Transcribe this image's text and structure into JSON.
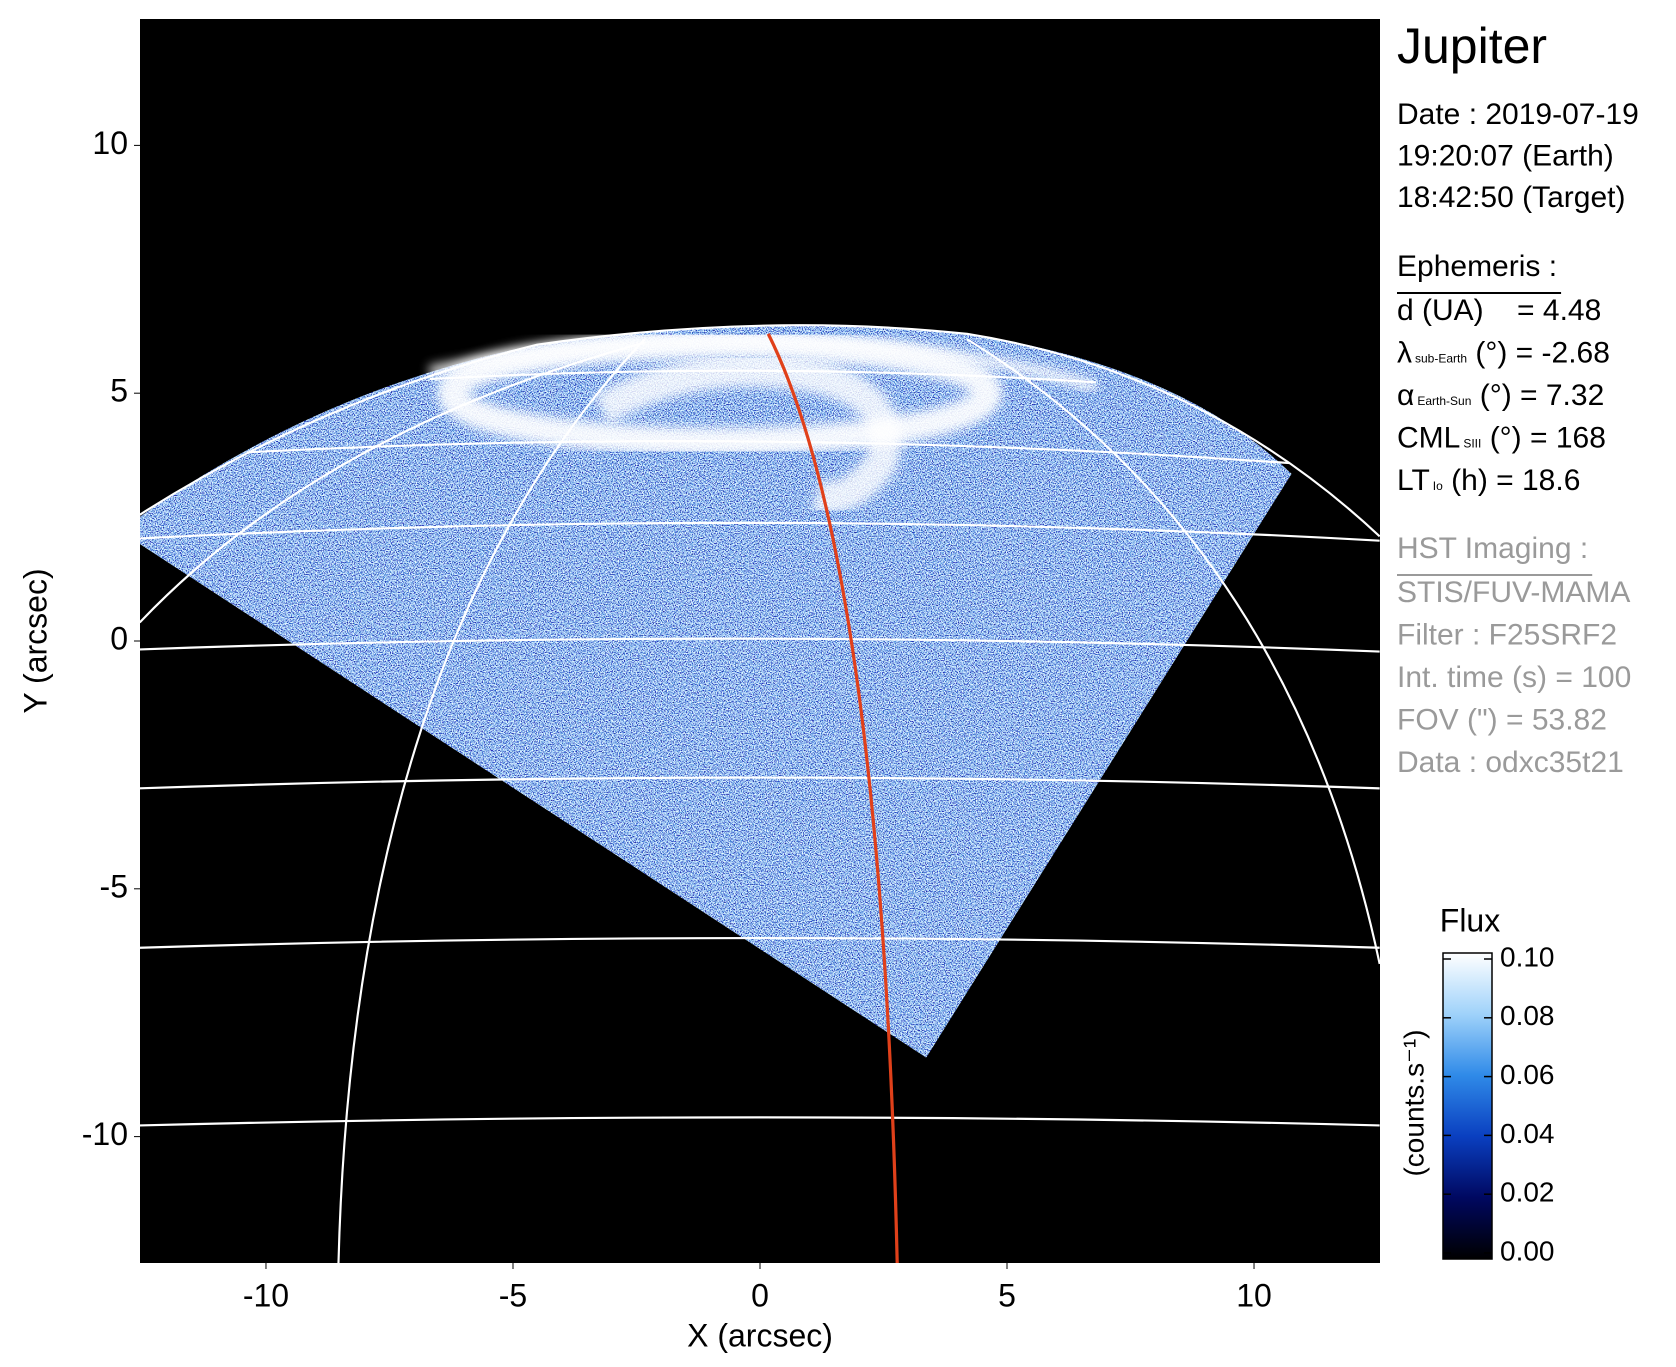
{
  "chart_data": {
    "type": "image",
    "xlabel": "X (arcsec)",
    "ylabel": "Y (arcsec)",
    "xlim": [
      -12.55,
      12.55
    ],
    "ylim": [
      -12.55,
      12.55
    ],
    "xticks": [
      -10,
      -5,
      0,
      5,
      10
    ],
    "yticks": [
      -10,
      -5,
      0,
      5,
      10
    ],
    "colorbar": {
      "title": "Flux",
      "label": "(counts.s⁻¹)",
      "clim": [
        0,
        0.1
      ],
      "ticks": [
        {
          "value": 0,
          "label": "0.00"
        },
        0.02,
        0.04,
        0.06,
        0.08,
        {
          "value": 0.1,
          "label": "0.10"
        }
      ],
      "colormap": [
        "#000000",
        "#000860",
        "#0a3fc0",
        "#2f8ae8",
        "#9fd2fa",
        "#ffffff"
      ]
    },
    "info": {
      "title": "Jupiter",
      "observation": [
        "Date : 2019-07-19",
        "19:20:07 (Earth)",
        "18:42:50 (Target)"
      ],
      "ephemeris_heading": "Ephemeris :",
      "ephemeris": [
        {
          "main": "d (UA)",
          "rest": "    = 4.48"
        },
        {
          "main": "λ",
          "sub": "sub-Earth",
          "rest": " (°) = -2.68"
        },
        {
          "main": "α",
          "sub": "Earth-Sun",
          "rest": " (°) = 7.32"
        },
        {
          "main": "CML",
          "sub": "SIII",
          "rest": " (°) = 168"
        },
        {
          "main": "LT",
          "sub": "Io",
          "rest": " (h) = 18.6"
        }
      ],
      "imaging_heading": "HST Imaging :",
      "imaging": [
        "STIS/FUV-MAMA",
        "Filter : F25SRF2",
        "Int. time (s) = 100",
        "FOV (\") = 53.82",
        "Data : odxc35t21"
      ]
    }
  }
}
